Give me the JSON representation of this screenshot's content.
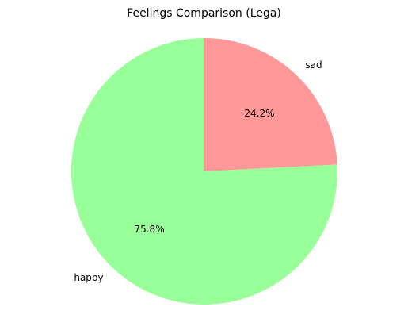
{
  "chart_data": {
    "type": "pie",
    "title": "Feelings Comparison (Lega)",
    "slices": [
      {
        "label": "sad",
        "value": 24.2,
        "pct_label": "24.2%",
        "color": "#ff9999"
      },
      {
        "label": "happy",
        "value": 75.8,
        "pct_label": "75.8%",
        "color": "#99ff99"
      }
    ],
    "start_angle": 90,
    "direction": "clockwise",
    "legend": "none"
  }
}
